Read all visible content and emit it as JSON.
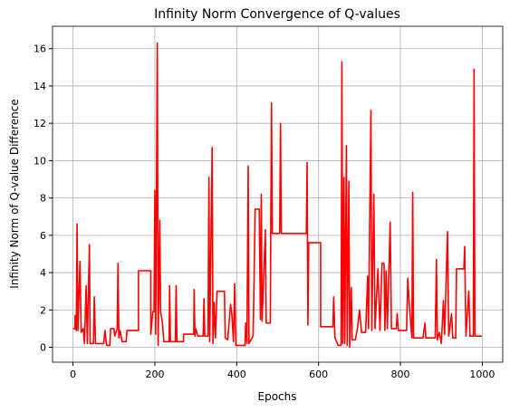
{
  "chart_data": {
    "type": "line",
    "title": "Infinity Norm Convergence of Q-values",
    "xlabel": "Epochs",
    "ylabel": "Infinity Norm of Q-value Difference",
    "x": [
      0,
      5,
      5,
      8,
      10,
      12,
      17,
      20,
      25,
      28,
      32,
      35,
      40,
      42,
      50,
      52,
      55,
      75,
      78,
      82,
      90,
      92,
      100,
      102,
      108,
      110,
      112,
      115,
      120,
      130,
      132,
      160,
      160,
      190,
      190,
      195,
      198,
      200,
      202,
      206,
      208,
      212,
      214,
      218,
      222,
      235,
      236,
      238,
      250,
      252,
      254,
      270,
      270,
      295,
      296,
      298,
      300,
      305,
      318,
      320,
      322,
      330,
      332,
      334,
      340,
      342,
      345,
      348,
      352,
      370,
      372,
      378,
      385,
      388,
      392,
      395,
      398,
      420,
      422,
      425,
      428,
      430,
      440,
      442,
      445,
      455,
      458,
      460,
      462,
      470,
      472,
      482,
      485,
      487,
      505,
      507,
      509,
      570,
      572,
      574,
      576,
      605,
      605,
      635,
      637,
      640,
      648,
      655,
      657,
      659,
      662,
      664,
      668,
      670,
      674,
      676,
      680,
      682,
      690,
      695,
      700,
      705,
      715,
      720,
      722,
      728,
      730,
      735,
      738,
      745,
      750,
      755,
      760,
      762,
      765,
      768,
      775,
      778,
      790,
      792,
      795,
      815,
      818,
      822,
      828,
      830,
      832,
      855,
      860,
      862,
      885,
      888,
      890,
      895,
      900,
      905,
      908,
      915,
      918,
      925,
      928,
      935,
      937,
      955,
      957,
      960,
      967,
      970,
      978,
      980,
      982,
      999
    ],
    "series": [
      {
        "name": "Infinity Norm",
        "color": "#ff0000",
        "values": [
          1.0,
          1.0,
          1.7,
          0.9,
          6.6,
          0.9,
          4.6,
          0.8,
          1.0,
          0.2,
          3.3,
          0.2,
          5.5,
          0.2,
          0.2,
          2.7,
          0.2,
          0.2,
          0.9,
          0.1,
          0.1,
          1.0,
          1.0,
          0.6,
          1.0,
          4.5,
          0.5,
          0.9,
          0.3,
          0.3,
          0.9,
          0.9,
          4.1,
          4.1,
          0.7,
          1.9,
          1.9,
          8.4,
          0.7,
          16.3,
          0.1,
          6.8,
          1.9,
          1.4,
          0.3,
          0.3,
          3.3,
          0.3,
          0.3,
          3.3,
          0.3,
          0.3,
          0.7,
          0.7,
          3.1,
          0.6,
          1.0,
          0.6,
          0.6,
          2.6,
          0.6,
          0.6,
          9.1,
          0.3,
          10.7,
          0.2,
          2.4,
          0.5,
          3.0,
          3.0,
          0.5,
          0.4,
          2.3,
          1.8,
          0.3,
          3.4,
          0.1,
          0.1,
          1.3,
          0.2,
          9.7,
          0.2,
          0.6,
          3.0,
          7.4,
          7.4,
          1.5,
          8.2,
          1.4,
          6.3,
          1.3,
          1.3,
          13.1,
          6.1,
          6.1,
          12.0,
          6.1,
          6.1,
          9.9,
          1.2,
          5.6,
          5.6,
          1.1,
          1.1,
          2.7,
          0.5,
          0.1,
          0.1,
          15.3,
          0.2,
          9.1,
          0.2,
          10.8,
          0.1,
          8.9,
          0.0,
          3.2,
          0.4,
          0.4,
          1.0,
          2.0,
          0.8,
          0.8,
          3.8,
          1.0,
          12.7,
          0.9,
          8.2,
          1.0,
          4.2,
          0.9,
          4.5,
          4.5,
          0.9,
          4.1,
          1.0,
          6.7,
          1.0,
          1.0,
          1.8,
          0.9,
          0.9,
          3.7,
          2.2,
          0.5,
          8.3,
          0.5,
          0.5,
          1.3,
          0.5,
          0.5,
          4.7,
          0.4,
          0.8,
          0.2,
          2.5,
          0.7,
          6.2,
          0.6,
          1.8,
          0.5,
          0.5,
          4.2,
          4.2,
          5.4,
          0.6,
          3.0,
          0.6,
          0.6,
          14.9,
          0.6,
          0.6
        ]
      }
    ],
    "xlim": [
      -50,
      1050
    ],
    "xticks": [
      0,
      200,
      400,
      600,
      800,
      1000
    ],
    "ylim": [
      -0.8,
      17.2
    ],
    "yticks": [
      0,
      2,
      4,
      6,
      8,
      10,
      12,
      14,
      16
    ],
    "grid": true
  }
}
